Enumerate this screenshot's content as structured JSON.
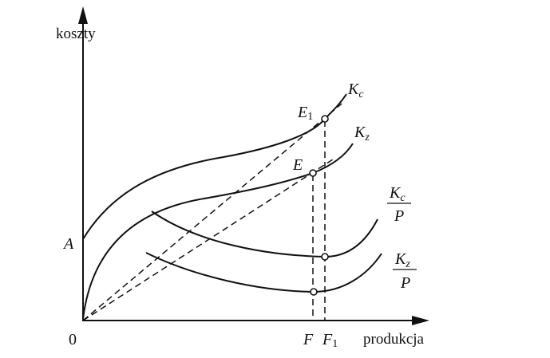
{
  "axes": {
    "y_label": "koszty",
    "x_label": "produkcja",
    "origin": "0",
    "y_intercept": "A"
  },
  "x_marks": [
    {
      "label": "F"
    },
    {
      "label": "F",
      "sub": "1"
    }
  ],
  "curves": {
    "total_cost": {
      "label": "K",
      "sub": "c"
    },
    "variable_cost": {
      "label": "K",
      "sub": "z"
    },
    "avg_total": {
      "num": "K",
      "num_sub": "c",
      "den": "P"
    },
    "avg_variable": {
      "num": "K",
      "num_sub": "z",
      "den": "P"
    }
  },
  "points": {
    "E1": {
      "label": "E",
      "sub": "1"
    },
    "E": {
      "label": "E"
    }
  }
}
